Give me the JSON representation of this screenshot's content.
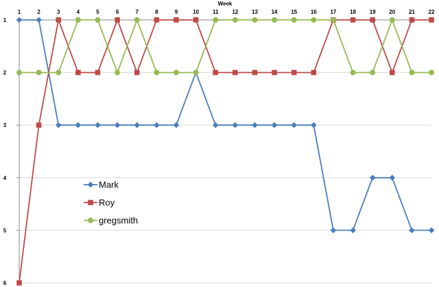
{
  "chart_data": {
    "type": "line",
    "title": "Week",
    "xlabel": "",
    "ylabel": "",
    "x": [
      1,
      2,
      3,
      4,
      5,
      6,
      7,
      8,
      9,
      10,
      11,
      12,
      13,
      14,
      15,
      16,
      17,
      18,
      19,
      20,
      21,
      22
    ],
    "ylim": [
      1,
      6
    ],
    "y_inverted": true,
    "y_ticks": [
      1,
      2,
      3,
      4,
      5,
      6
    ],
    "x_axis_position": "top",
    "grid": "horizontal",
    "legend_position": "left-middle",
    "series": [
      {
        "name": "Mark",
        "color": "#4a7ebb",
        "marker": "diamond",
        "values": [
          1,
          1,
          3,
          3,
          3,
          3,
          3,
          3,
          3,
          2,
          3,
          3,
          3,
          3,
          3,
          3,
          5,
          5,
          4,
          4,
          5,
          5
        ]
      },
      {
        "name": "Roy",
        "color": "#be4b48",
        "marker": "square",
        "values": [
          6,
          3,
          1,
          2,
          2,
          1,
          2,
          1,
          1,
          1,
          2,
          2,
          2,
          2,
          2,
          2,
          1,
          1,
          1,
          2,
          1,
          1
        ]
      },
      {
        "name": "gregsmith",
        "color": "#98b954",
        "marker": "circle",
        "values": [
          2,
          2,
          2,
          1,
          1,
          2,
          1,
          2,
          2,
          2,
          1,
          1,
          1,
          1,
          1,
          1,
          1,
          2,
          2,
          1,
          2,
          2
        ]
      }
    ]
  }
}
